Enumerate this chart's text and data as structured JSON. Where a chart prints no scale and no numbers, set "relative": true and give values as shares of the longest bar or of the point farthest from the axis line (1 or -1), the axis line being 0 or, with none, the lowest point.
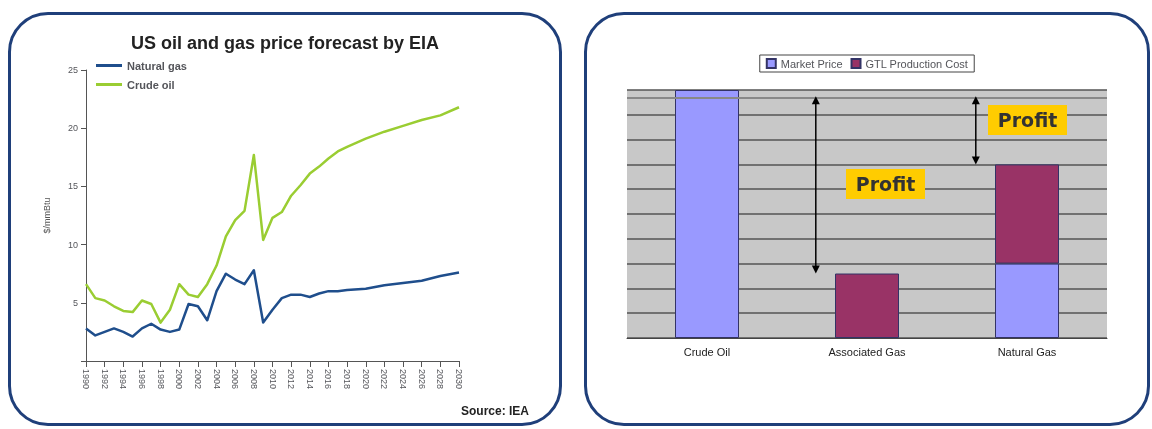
{
  "chart_data": [
    {
      "type": "line",
      "title": "US oil and gas price forecast by EIA",
      "ylabel": "$/mmBtu",
      "annotations": [
        "Source: IEA"
      ],
      "x": [
        1990,
        1991,
        1992,
        1993,
        1994,
        1995,
        1996,
        1997,
        1998,
        1999,
        2000,
        2001,
        2002,
        2003,
        2004,
        2005,
        2006,
        2007,
        2008,
        2009,
        2010,
        2011,
        2012,
        2013,
        2014,
        2015,
        2016,
        2017,
        2018,
        2020,
        2022,
        2024,
        2026,
        2028,
        2030
      ],
      "series": [
        {
          "name": "Natural gas",
          "color": "#1f4e8c",
          "values": [
            2.8,
            2.2,
            2.5,
            2.8,
            2.5,
            2.1,
            2.8,
            3.2,
            2.7,
            2.5,
            2.7,
            4.9,
            4.7,
            3.5,
            6.0,
            7.5,
            7.0,
            6.6,
            7.8,
            3.3,
            4.4,
            5.4,
            5.7,
            5.7,
            5.5,
            5.8,
            6.0,
            6.0,
            6.1,
            6.2,
            6.5,
            6.7,
            6.9,
            7.3,
            7.6
          ]
        },
        {
          "name": "Crude oil",
          "color": "#9acd32",
          "values": [
            6.6,
            5.4,
            5.2,
            4.7,
            4.3,
            4.2,
            5.2,
            4.9,
            3.3,
            4.4,
            6.6,
            5.7,
            5.5,
            6.6,
            8.2,
            10.7,
            12.1,
            12.9,
            17.7,
            10.4,
            12.3,
            12.8,
            14.2,
            15.1,
            16.1,
            16.7,
            17.4,
            18.0,
            18.4,
            19.1,
            19.7,
            20.2,
            20.7,
            21.1,
            21.8
          ]
        }
      ],
      "xlim": [
        1990,
        2030
      ],
      "xticks": [
        1990,
        1992,
        1994,
        1996,
        1998,
        2000,
        2002,
        2004,
        2006,
        2008,
        2010,
        2012,
        2014,
        2016,
        2018,
        2020,
        2022,
        2024,
        2026,
        2028,
        2030
      ],
      "ylim": [
        0,
        25
      ],
      "yticks": [
        {
          "value": 0,
          "label": null
        },
        5,
        10,
        15,
        20,
        25
      ],
      "legend": "top left",
      "grid": false,
      "marker": "none",
      "line_style": "solid"
    },
    {
      "type": "bar",
      "relative": true,
      "stacked": true,
      "categories": [
        "Crude Oil",
        "Associated Gas",
        "Natural Gas"
      ],
      "series": [
        {
          "name": "Market Price",
          "color": "#9999ff",
          "values": [
            1.0,
            null,
            0.3
          ]
        },
        {
          "name": "GTL Production Cost",
          "color": "#993366",
          "values": [
            null,
            0.26,
            0.4
          ]
        }
      ],
      "ref_lines": [
        {
          "axis": "y",
          "value": 0.975,
          "label": null,
          "color": "#888888"
        }
      ],
      "annotations": [
        "Profit",
        "Profit"
      ],
      "legend": "top",
      "grid": "y"
    }
  ]
}
